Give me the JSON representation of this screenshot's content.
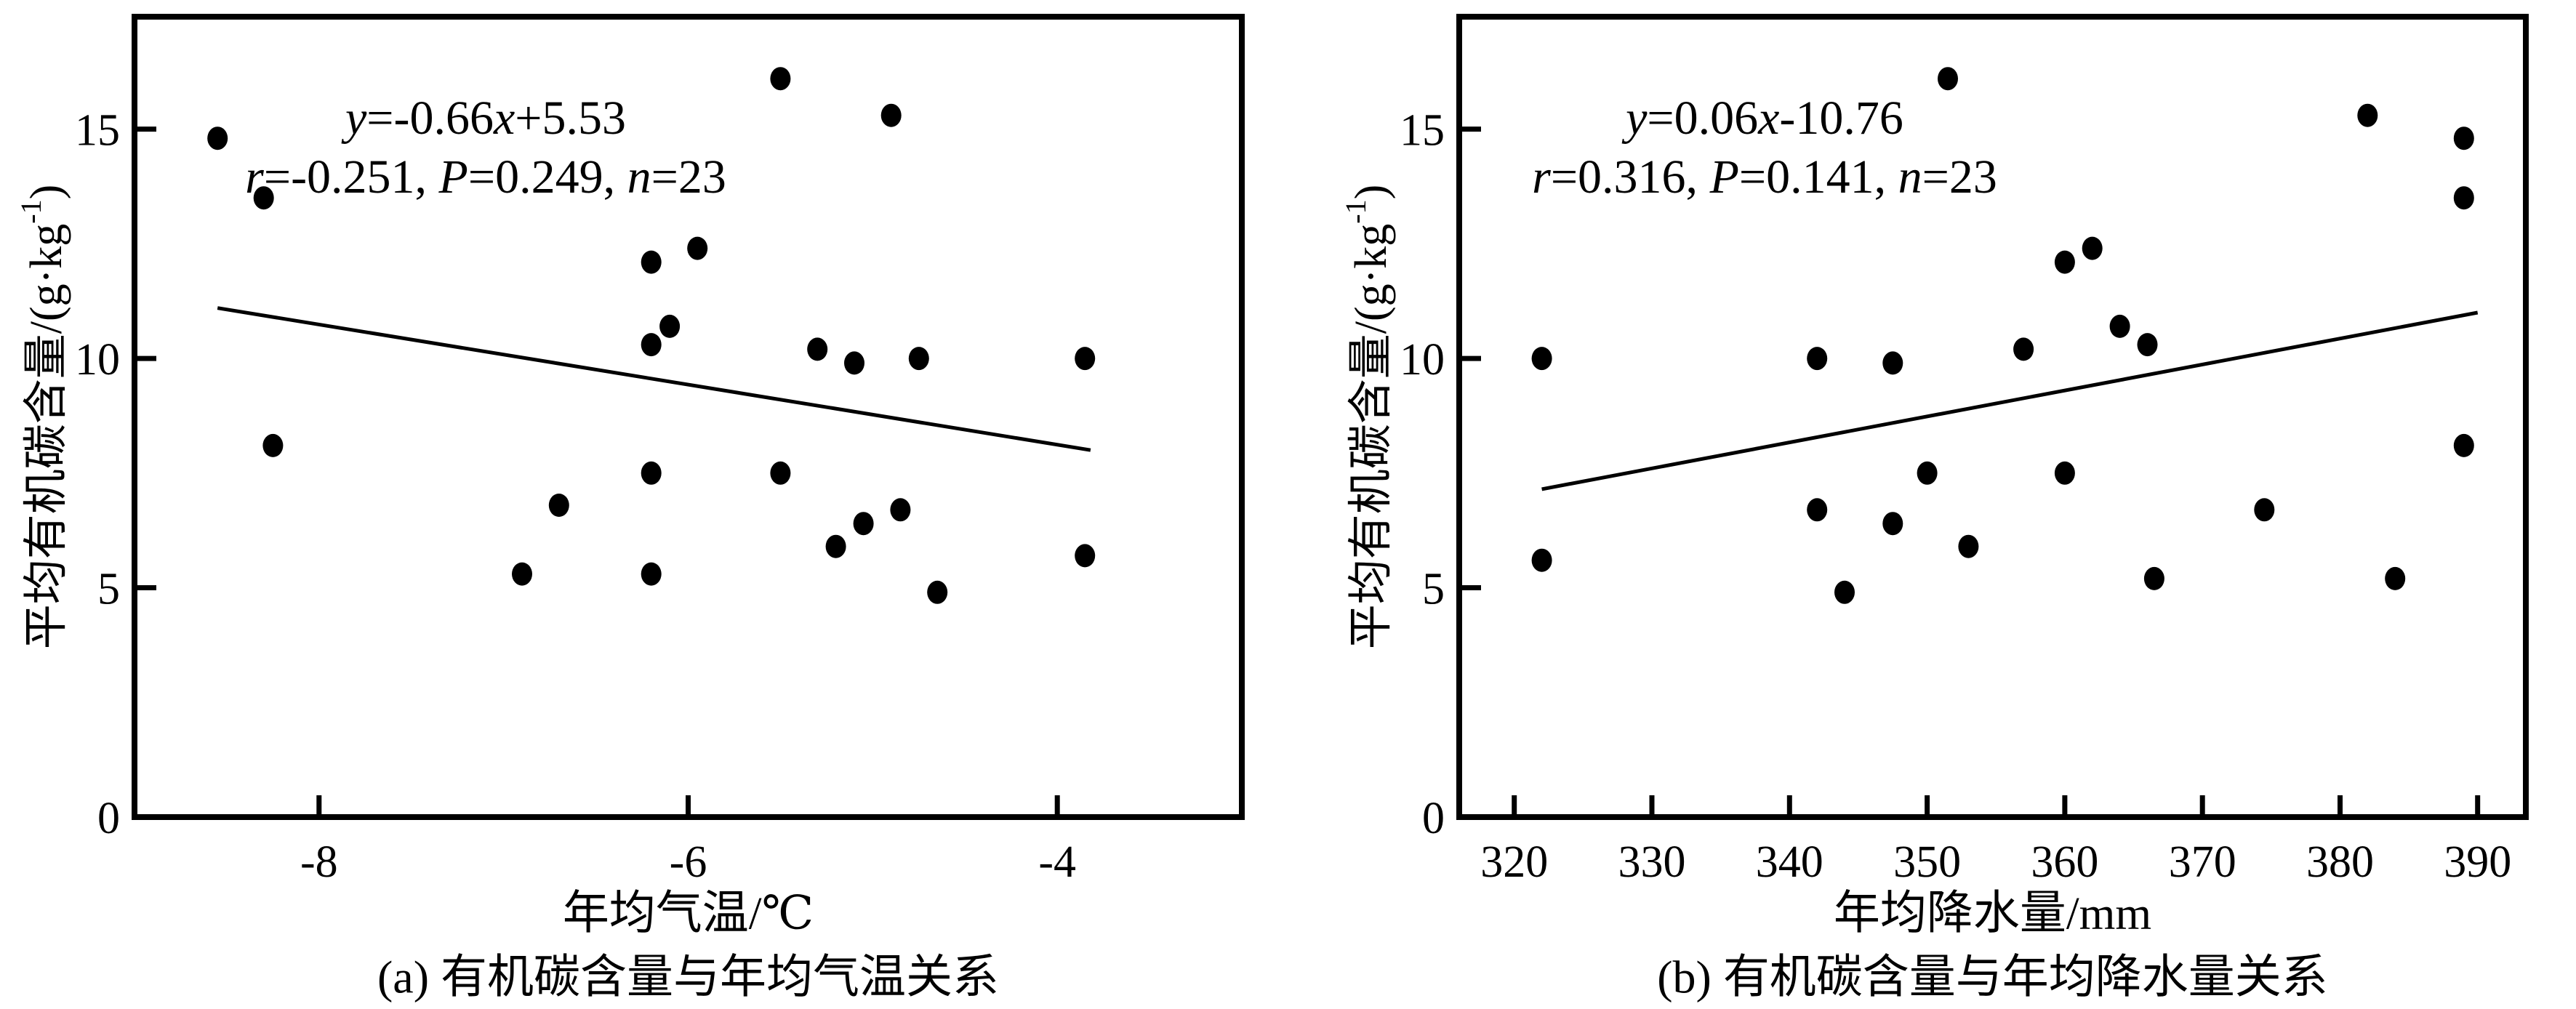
{
  "figure": {
    "background_color": "#ffffff",
    "ink_color": "#000000"
  },
  "chart_data": [
    {
      "type": "scatter",
      "panel": "a",
      "caption": "(a) 有机碳含量与年均气温关系",
      "xlabel": "年均气温/℃",
      "ylabel": "平均有机碳含量/(g·kg⁻¹)",
      "ylabel_segments": [
        {
          "t": "平均有机碳含量/(g·kg"
        },
        {
          "t": "-1",
          "sup": true
        },
        {
          "t": ")"
        }
      ],
      "equation": "y=-0.66x+5.53",
      "stats": "r=-0.251, P=0.249, n=23",
      "equation_segments": [
        {
          "t": "y",
          "italic": true
        },
        {
          "t": "=-0.66"
        },
        {
          "t": "x",
          "italic": true
        },
        {
          "t": "+5.53"
        }
      ],
      "stats_segments": [
        {
          "t": "r",
          "italic": true
        },
        {
          "t": "=-0.251, "
        },
        {
          "t": "P",
          "italic": true
        },
        {
          "t": "=0.249, "
        },
        {
          "t": "n",
          "italic": true
        },
        {
          "t": "=23"
        }
      ],
      "xlim": [
        -9,
        -3
      ],
      "ylim": [
        0,
        17.45
      ],
      "xticks": [
        -8,
        -6,
        -4
      ],
      "xtick_labels": [
        "-8",
        "-6",
        "-4"
      ],
      "yticks": [
        0,
        5,
        10,
        15
      ],
      "ytick_labels": [
        "0",
        "5",
        "10",
        "15"
      ],
      "grid": false,
      "legend": "none",
      "marker": "filled-black-dot",
      "n": 23,
      "points": [
        [
          -8.55,
          14.8
        ],
        [
          -8.3,
          13.5
        ],
        [
          -8.25,
          8.1
        ],
        [
          -6.9,
          5.3
        ],
        [
          -6.7,
          6.8
        ],
        [
          -6.2,
          12.1
        ],
        [
          -6.2,
          10.3
        ],
        [
          -6.2,
          7.5
        ],
        [
          -6.2,
          5.3
        ],
        [
          -6.1,
          10.7
        ],
        [
          -5.95,
          12.4
        ],
        [
          -5.5,
          16.1
        ],
        [
          -5.5,
          7.5
        ],
        [
          -5.3,
          10.2
        ],
        [
          -5.2,
          5.9
        ],
        [
          -5.1,
          9.9
        ],
        [
          -5.05,
          6.4
        ],
        [
          -4.9,
          15.3
        ],
        [
          -4.85,
          6.7
        ],
        [
          -4.75,
          10.0
        ],
        [
          -4.65,
          4.9
        ],
        [
          -3.85,
          10.0
        ],
        [
          -3.85,
          5.7
        ]
      ],
      "trendline": {
        "x1": -8.55,
        "y1": 11.1,
        "x2": -3.82,
        "y2": 8.0
      }
    },
    {
      "type": "scatter",
      "panel": "b",
      "caption": "(b) 有机碳含量与年均降水量关系",
      "xlabel": "年均降水量/mm",
      "ylabel": "平均有机碳含量/(g·kg⁻¹)",
      "ylabel_segments": [
        {
          "t": "平均有机碳含量/(g·kg"
        },
        {
          "t": "-1",
          "sup": true
        },
        {
          "t": ")"
        }
      ],
      "equation": "y=0.06x-10.76",
      "stats": "r=0.316, P=0.141, n=23",
      "equation_segments": [
        {
          "t": "y",
          "italic": true
        },
        {
          "t": "=0.06"
        },
        {
          "t": "x",
          "italic": true
        },
        {
          "t": "-10.76"
        }
      ],
      "stats_segments": [
        {
          "t": "r",
          "italic": true
        },
        {
          "t": "=0.316, "
        },
        {
          "t": "P",
          "italic": true
        },
        {
          "t": "=0.141, "
        },
        {
          "t": "n",
          "italic": true
        },
        {
          "t": "=23"
        }
      ],
      "xlim": [
        316,
        393.5
      ],
      "ylim": [
        0,
        17.45
      ],
      "xticks": [
        320,
        330,
        340,
        350,
        360,
        370,
        380,
        390
      ],
      "xtick_labels": [
        "320",
        "330",
        "340",
        "350",
        "360",
        "370",
        "380",
        "390"
      ],
      "yticks": [
        0,
        5,
        10,
        15
      ],
      "ytick_labels": [
        "0",
        "5",
        "10",
        "15"
      ],
      "grid": false,
      "legend": "none",
      "marker": "filled-black-dot",
      "n": 23,
      "points": [
        [
          322,
          10.0
        ],
        [
          322,
          5.6
        ],
        [
          342,
          10.0
        ],
        [
          342,
          6.7
        ],
        [
          344,
          4.9
        ],
        [
          347.5,
          9.9
        ],
        [
          347.5,
          6.4
        ],
        [
          350,
          7.5
        ],
        [
          351.5,
          16.1
        ],
        [
          353,
          5.9
        ],
        [
          357,
          10.2
        ],
        [
          360,
          12.1
        ],
        [
          360,
          7.5
        ],
        [
          362,
          12.4
        ],
        [
          364,
          10.7
        ],
        [
          366,
          10.3
        ],
        [
          366.5,
          5.2
        ],
        [
          374.5,
          6.7
        ],
        [
          382,
          15.3
        ],
        [
          384,
          5.2
        ],
        [
          389,
          14.8
        ],
        [
          389,
          13.5
        ],
        [
          389,
          8.1
        ]
      ],
      "trendline": {
        "x1": 322,
        "y1": 7.15,
        "x2": 390,
        "y2": 11.0
      }
    }
  ]
}
